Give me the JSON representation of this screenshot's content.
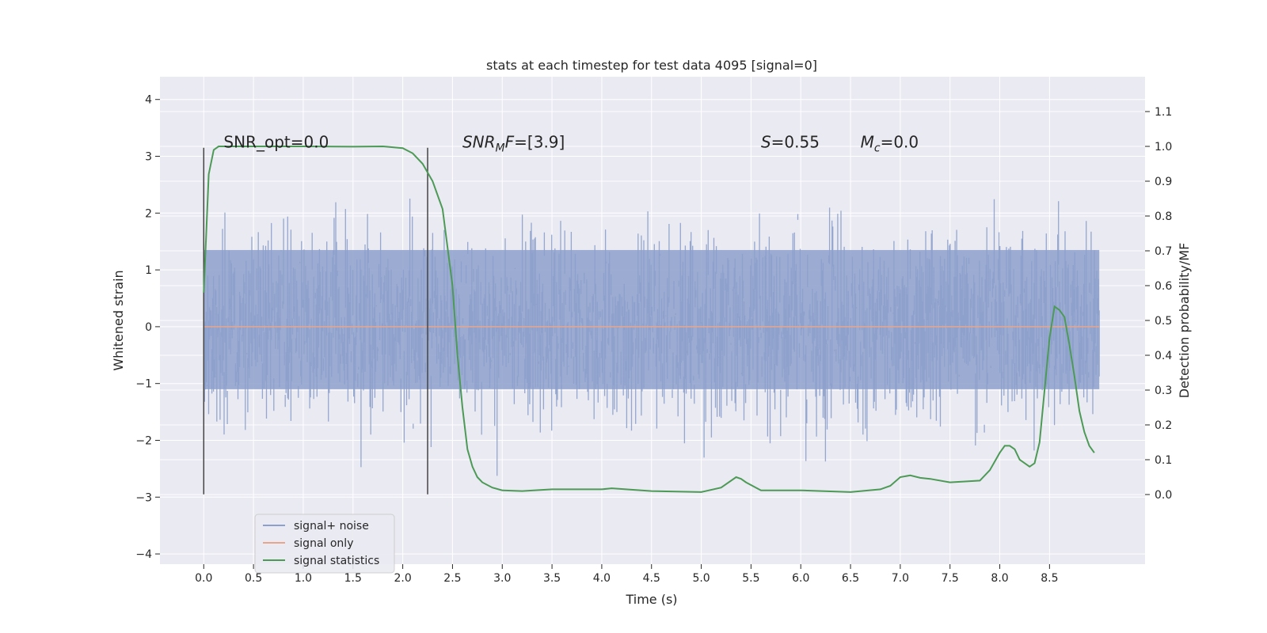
{
  "chart_data": {
    "type": "line",
    "title": "stats at each timestep for test data 4095 [signal=0]",
    "xlabel": "Time (s)",
    "ylabel": "Whitened strain",
    "ylabel_right": "Detection probability/MF",
    "xlim": [
      -0.44,
      9.46
    ],
    "ylim": [
      -4.18,
      4.4
    ],
    "ylim_right": [
      -0.2,
      1.2
    ],
    "x_ticks": [
      "0.0",
      "0.5",
      "1.0",
      "1.5",
      "2.0",
      "2.5",
      "3.0",
      "3.5",
      "4.0",
      "4.5",
      "5.0",
      "5.5",
      "6.0",
      "6.5",
      "7.0",
      "7.5",
      "8.0",
      "8.5"
    ],
    "x_tick_values": [
      0.0,
      0.5,
      1.0,
      1.5,
      2.0,
      2.5,
      3.0,
      3.5,
      4.0,
      4.5,
      5.0,
      5.5,
      6.0,
      6.5,
      7.0,
      7.5,
      8.0,
      8.5
    ],
    "y_ticks": [
      "−4",
      "−3",
      "−2",
      "−1",
      "0",
      "1",
      "2",
      "3",
      "4"
    ],
    "y_tick_values": [
      -4,
      -3,
      -2,
      -1,
      0,
      1,
      2,
      3,
      4
    ],
    "y_right_ticks": [
      "0.0",
      "0.1",
      "0.2",
      "0.3",
      "0.4",
      "0.5",
      "0.6",
      "0.7",
      "0.8",
      "0.9",
      "1.0",
      "1.1"
    ],
    "y_right_tick_values": [
      0.0,
      0.1,
      0.2,
      0.3,
      0.4,
      0.5,
      0.6,
      0.7,
      0.8,
      0.9,
      1.0,
      1.1
    ],
    "grid": true,
    "noise": {
      "t_start": 0.0,
      "t_end": 9.0,
      "n_samples": 1100,
      "band_lo": -1.1,
      "band_hi": 1.35,
      "seed": 4095
    },
    "series": [
      {
        "name": "signal+ noise",
        "color": "#8da0cb",
        "kind": "strain"
      },
      {
        "name": "signal only",
        "color": "#e8a58b",
        "kind": "flat",
        "value": 0.0
      },
      {
        "name": "signal statistics",
        "color": "#4c9a55",
        "axis": "right",
        "x": [
          0.0,
          0.05,
          0.1,
          0.15,
          0.2,
          0.3,
          0.5,
          1.0,
          1.5,
          1.8,
          2.0,
          2.1,
          2.2,
          2.3,
          2.4,
          2.5,
          2.55,
          2.6,
          2.65,
          2.7,
          2.75,
          2.8,
          2.9,
          3.0,
          3.2,
          3.5,
          4.0,
          4.1,
          4.5,
          5.0,
          5.2,
          5.35,
          5.4,
          5.45,
          5.6,
          6.0,
          6.5,
          6.8,
          6.9,
          7.0,
          7.1,
          7.2,
          7.3,
          7.5,
          7.8,
          7.9,
          8.0,
          8.05,
          8.1,
          8.15,
          8.2,
          8.3,
          8.35,
          8.4,
          8.45,
          8.5,
          8.55,
          8.6,
          8.65,
          8.7,
          8.75,
          8.8,
          8.85,
          8.9,
          8.95
        ],
        "y": [
          0.58,
          0.92,
          0.99,
          1.0,
          1.0,
          1.0,
          1.0,
          1.0,
          0.999,
          1.0,
          0.995,
          0.98,
          0.95,
          0.9,
          0.82,
          0.6,
          0.4,
          0.25,
          0.13,
          0.08,
          0.05,
          0.035,
          0.02,
          0.012,
          0.01,
          0.015,
          0.015,
          0.018,
          0.01,
          0.007,
          0.02,
          0.05,
          0.045,
          0.035,
          0.012,
          0.012,
          0.007,
          0.015,
          0.025,
          0.05,
          0.055,
          0.048,
          0.045,
          0.035,
          0.04,
          0.07,
          0.12,
          0.14,
          0.14,
          0.13,
          0.1,
          0.08,
          0.09,
          0.15,
          0.3,
          0.45,
          0.54,
          0.53,
          0.51,
          0.43,
          0.34,
          0.24,
          0.18,
          0.14,
          0.12
        ]
      }
    ],
    "marker_lines": [
      0.0,
      2.25
    ],
    "annotations": [
      {
        "text": "SNR_opt=0.0",
        "x": 0.2,
        "y": 3.15
      },
      {
        "base": "SNR",
        "sub": "M",
        "tail": "F=[3.9]",
        "x": 2.6,
        "y": 3.15
      },
      {
        "base": "S",
        "sub": "",
        "tail": "=0.55",
        "x": 5.6,
        "y": 3.15
      },
      {
        "base": "M",
        "sub": "c",
        "tail": "=0.0",
        "x": 6.6,
        "y": 3.15
      }
    ],
    "legend": {
      "placement": "lower-left"
    }
  }
}
